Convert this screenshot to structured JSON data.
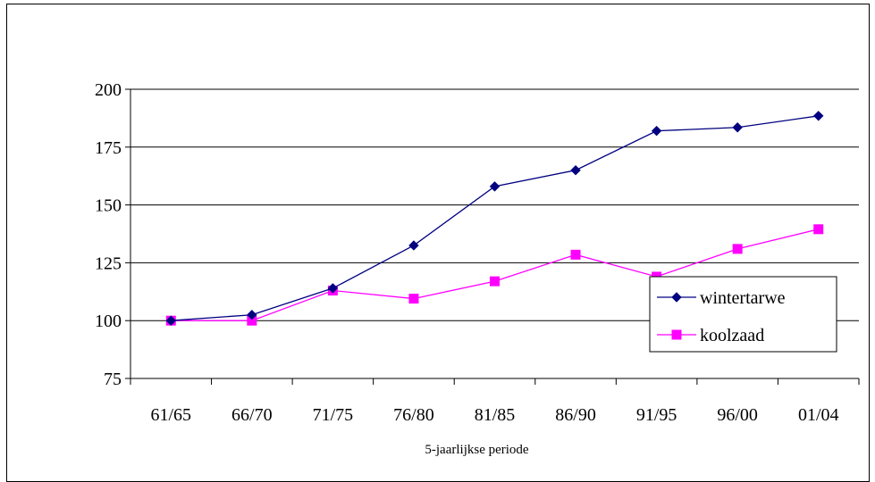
{
  "chart_data": {
    "type": "line",
    "title": "",
    "xlabel": "5-jaarlijkse periode",
    "ylabel": "",
    "categories": [
      "61/65",
      "66/70",
      "71/75",
      "76/80",
      "81/85",
      "86/90",
      "91/95",
      "96/00",
      "01/04"
    ],
    "ylim": [
      75,
      200
    ],
    "yticks": [
      "75",
      "100",
      "125",
      "150",
      "175",
      "200"
    ],
    "grid": true,
    "legend_position": "right",
    "series": [
      {
        "name": "wintertarwe",
        "color": "#000080",
        "marker": "diamond",
        "values": [
          100,
          102.5,
          114,
          132.5,
          158,
          165,
          182,
          183.5,
          188.5
        ]
      },
      {
        "name": "koolzaad",
        "color": "#FF00FF",
        "marker": "square",
        "values": [
          100,
          100,
          113,
          109.5,
          117,
          128.5,
          119,
          131,
          139.5
        ]
      }
    ]
  }
}
